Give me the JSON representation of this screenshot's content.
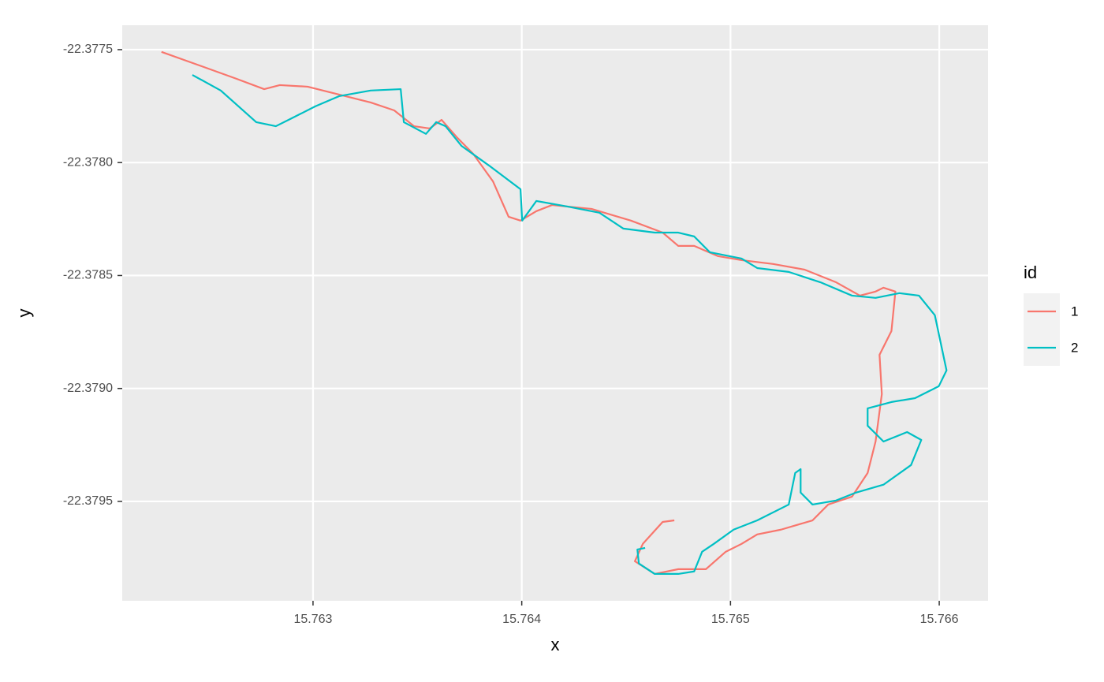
{
  "chart_data": {
    "type": "line",
    "x_label": "x",
    "y_label": "y",
    "legend_title": "id",
    "legend": "right",
    "grid": true,
    "xlim": [
      15.762086,
      15.766234
    ],
    "ylim": [
      -22.37994,
      -22.377392
    ],
    "xticks": [
      15.763,
      15.764,
      15.765,
      15.766
    ],
    "yticks": [
      -22.3775,
      {
        "value": -22.378,
        "label": "-22.3780"
      },
      -22.3785,
      {
        "value": -22.379,
        "label": "-22.3790"
      },
      -22.3795
    ],
    "series": [
      {
        "name": "1",
        "color": "#F8766D",
        "x": [
          15.762274,
          15.762444,
          15.762633,
          15.762766,
          15.762841,
          15.762974,
          15.763125,
          15.763276,
          15.763389,
          15.763484,
          15.763559,
          15.763616,
          15.763692,
          15.763767,
          15.763862,
          15.763937,
          15.763994,
          15.76407,
          15.764145,
          15.764334,
          15.764523,
          15.764675,
          15.76475,
          15.764826,
          15.764939,
          15.765053,
          15.765204,
          15.765355,
          15.765506,
          15.76562,
          15.765695,
          15.765733,
          15.76579,
          15.765771,
          15.765714,
          15.765725,
          15.765695,
          15.765657,
          15.765582,
          15.765468,
          15.765393,
          15.765242,
          15.765128,
          15.765053,
          15.764977,
          15.764882,
          15.76475,
          15.764637,
          15.764542,
          15.76458,
          15.764675,
          15.764731
        ],
        "values": [
          -22.37751,
          -22.377566,
          -22.377629,
          -22.377675,
          -22.377657,
          -22.377664,
          -22.377699,
          -22.377734,
          -22.377769,
          -22.377839,
          -22.377849,
          -22.377811,
          -22.377891,
          -22.377961,
          -22.378083,
          -22.37824,
          -22.378257,
          -22.378215,
          -22.378188,
          -22.378205,
          -22.378257,
          -22.37831,
          -22.378369,
          -22.378369,
          -22.378414,
          -22.378432,
          -22.378449,
          -22.378474,
          -22.37853,
          -22.378589,
          -22.378571,
          -22.378554,
          -22.378571,
          -22.378746,
          -22.378851,
          -22.379025,
          -22.379235,
          -22.379374,
          -22.379479,
          -22.379514,
          -22.379584,
          -22.379625,
          -22.379646,
          -22.379688,
          -22.379723,
          -22.3798,
          -22.3798,
          -22.379821,
          -22.379765,
          -22.379688,
          -22.379591,
          -22.379584
        ]
      },
      {
        "name": "2",
        "color": "#00BFC4",
        "x": [
          15.762422,
          15.762558,
          15.762728,
          15.762822,
          15.762898,
          15.763011,
          15.763125,
          15.763276,
          15.76342,
          15.763435,
          15.763541,
          15.76359,
          15.763635,
          15.763711,
          15.763843,
          15.763994,
          15.764002,
          15.76407,
          15.764221,
          15.764372,
          15.764486,
          15.764637,
          15.76475,
          15.764826,
          15.764901,
          15.765053,
          15.765128,
          15.765279,
          15.765431,
          15.765582,
          15.765695,
          15.765809,
          15.765903,
          15.765979,
          15.766035,
          15.765998,
          15.765884,
          15.765771,
          15.765657,
          15.765657,
          15.765733,
          15.765846,
          15.765914,
          15.765865,
          15.765733,
          15.765601,
          15.765506,
          15.765393,
          15.765336,
          15.765336,
          15.76531,
          15.765279,
          15.765128,
          15.765015,
          15.76492,
          15.764864,
          15.764826,
          15.76475,
          15.764637,
          15.764561,
          15.764554,
          15.764591
        ],
        "values": [
          -22.377612,
          -22.377681,
          -22.377821,
          -22.377839,
          -22.377804,
          -22.377751,
          -22.377706,
          -22.377681,
          -22.377675,
          -22.377821,
          -22.377873,
          -22.377821,
          -22.377839,
          -22.377926,
          -22.378013,
          -22.378118,
          -22.378257,
          -22.37817,
          -22.378195,
          -22.378222,
          -22.378292,
          -22.37831,
          -22.37831,
          -22.378327,
          -22.378397,
          -22.378425,
          -22.378467,
          -22.378484,
          -22.37853,
          -22.378589,
          -22.378599,
          -22.378578,
          -22.378589,
          -22.378676,
          -22.37892,
          -22.37899,
          -22.379043,
          -22.37906,
          -22.379088,
          -22.379165,
          -22.379235,
          -22.379193,
          -22.379228,
          -22.379339,
          -22.379426,
          -22.379461,
          -22.379496,
          -22.379514,
          -22.379461,
          -22.379357,
          -22.379374,
          -22.379514,
          -22.379584,
          -22.379625,
          -22.379688,
          -22.379723,
          -22.37981,
          -22.379821,
          -22.379821,
          -22.379775,
          -22.379713,
          -22.379706
        ]
      }
    ]
  }
}
